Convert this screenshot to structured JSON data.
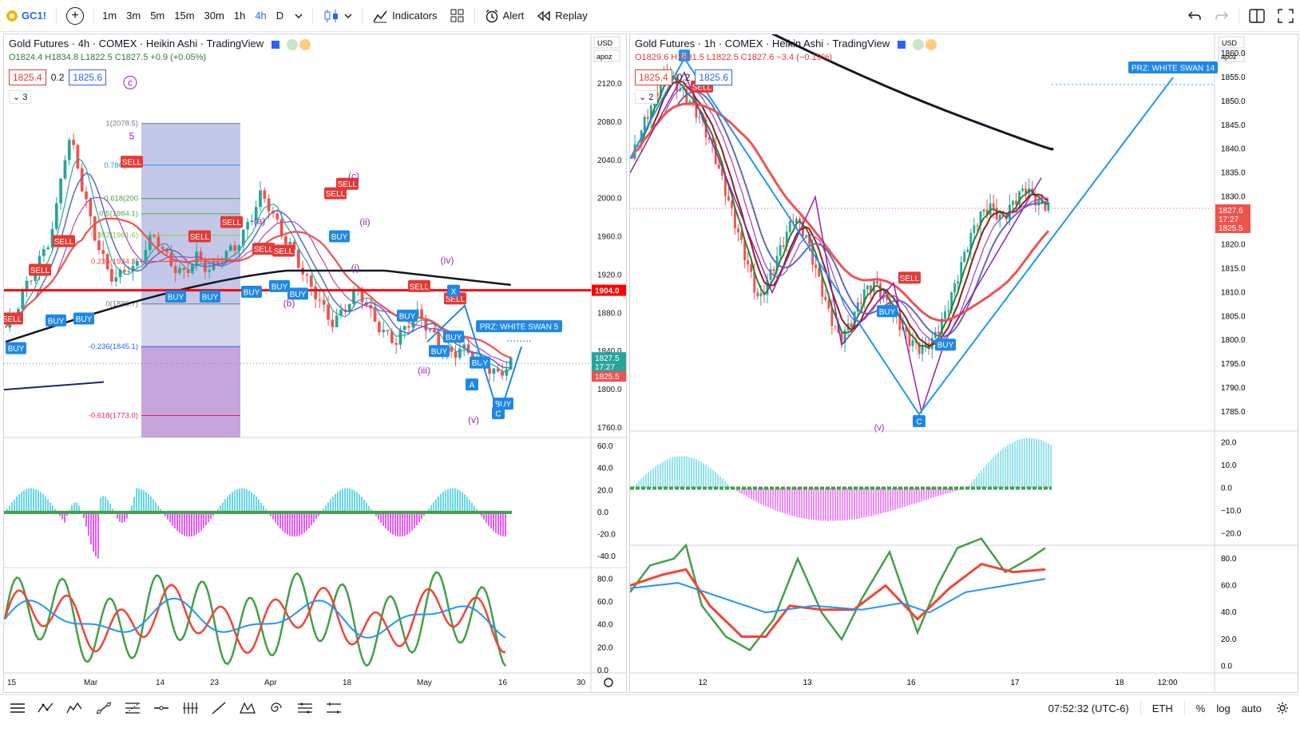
{
  "toolbar": {
    "symbol": "GC1!",
    "timeframes": [
      "1m",
      "3m",
      "5m",
      "15m",
      "30m",
      "1h",
      "4h",
      "D"
    ],
    "active_timeframe": "4h",
    "indicators_label": "Indicators",
    "alert_label": "Alert",
    "replay_label": "Replay"
  },
  "left_pane": {
    "title": "Gold Futures · 4h · COMEX · Heikin Ashi · TradingView",
    "ohlc": {
      "o": "O1824.4",
      "h": "H1834.8",
      "l": "L1822.5",
      "c": "C1827.5",
      "change": "+0.9 (+0.05%)"
    },
    "bid": "1825.4",
    "spread": "0.2",
    "ask": "1825.6",
    "collapse_count": "3",
    "currency": "USD",
    "scale_mode": "apoz",
    "price_ticks": [
      "2120.0",
      "2080.0",
      "2040.0",
      "2000.0",
      "1960.0",
      "1920.0",
      "1880.0",
      "1840.0",
      "1800.0",
      "1760.0"
    ],
    "red_line_label": "1904.0",
    "last_price": "1827.5",
    "last_time": "17:27",
    "last_bid": "1825.5",
    "fib_levels": [
      "1(2078.5)",
      "0.786(203",
      "0.618(200",
      "0.5(1984.1)",
      "0.382(1961.6)",
      "0.236(1934.3)",
      "0(1889.7)",
      "-0.236(1845.1)",
      "-0.618(1773.0)"
    ],
    "wave_labels": [
      "c",
      "5",
      "(a)",
      "(b)",
      "(c)",
      "(ii)",
      "(i)",
      "(iii)",
      "(iv)",
      "(v)"
    ],
    "pattern_points": [
      "X",
      "A",
      "C"
    ],
    "prz_label": "PRZ: WHITE SWAN 5",
    "osc_ticks": [
      "60.0",
      "40.0",
      "20.0",
      "0.0",
      "-20.0",
      "-40.0"
    ],
    "rsi_ticks": [
      "80.0",
      "60.0",
      "40.0",
      "20.0",
      "0.0"
    ],
    "x_labels": [
      "15",
      "Mar",
      "14",
      "23",
      "Apr",
      "18",
      "May",
      "16",
      "30"
    ]
  },
  "right_pane": {
    "title": "Gold Futures · 1h · COMEX · Heikin Ashi · TradingView",
    "ohlc": {
      "o": "O1829.6",
      "h": "H1831.5",
      "l": "L1822.5",
      "c": "C1827.6",
      "change": "−3.4 (−0.19%)"
    },
    "bid": "1825.4",
    "spread": "0.2",
    "ask": "1825.6",
    "collapse_count": "2",
    "currency": "USD",
    "scale_mode": "apoz",
    "price_ticks": [
      "1860.0",
      "1855.0",
      "1850.0",
      "1845.0",
      "1840.0",
      "1835.0",
      "1830.0",
      "1825.0",
      "1820.0",
      "1815.0",
      "1810.0",
      "1805.0",
      "1800.0",
      "1795.0",
      "1790.0",
      "1785.0"
    ],
    "last_price": "1827.6",
    "last_time": "17:27",
    "last_bid": "1825.5",
    "pattern_points": [
      "B",
      "C"
    ],
    "wave_labels": [
      "(v)"
    ],
    "prz_label": "PRZ: WHITE SWAN 14",
    "osc_ticks": [
      "20.0",
      "10.0",
      "0.0",
      "−10.0",
      "−20.0"
    ],
    "rsi_ticks": [
      "80.0",
      "60.0",
      "40.0",
      "20.0",
      "0.0"
    ],
    "x_labels": [
      "12",
      "13",
      "16",
      "17",
      "18",
      "12:00"
    ]
  },
  "status": {
    "clock": "07:52:32 (UTC-6)",
    "session": "ETH",
    "percent_label": "%",
    "log_label": "log",
    "auto_label": "auto"
  },
  "signal_labels": {
    "buy": "BUY",
    "sell": "SELL"
  },
  "colors": {
    "accent": "#2962ff",
    "sell": "#e53935",
    "buy": "#2196f3",
    "ema_black": "#131722",
    "fib_box": "#7986cb",
    "osc_pos": "#4dd0e1",
    "osc_neg": "#e040fb",
    "rsi_green": "#43a047",
    "rsi_red": "#f44336",
    "rsi_blue": "#2196f3",
    "wave_purple": "#9c27b0"
  }
}
